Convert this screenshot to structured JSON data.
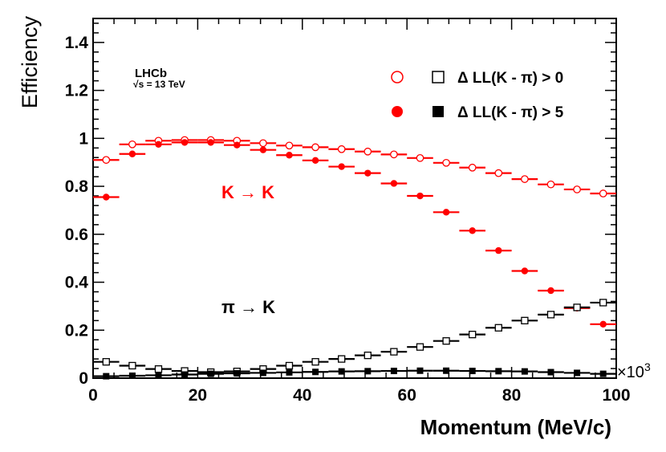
{
  "chart_data": {
    "type": "scatter",
    "xlabel": "Momentum (MeV/c)",
    "ylabel": "Efficiency",
    "x_multiplier": "×10",
    "x_multiplier_exp": "3",
    "xlim": [
      0,
      100
    ],
    "ylim": [
      0,
      1.5
    ],
    "x_ticks": [
      "0",
      "20",
      "40",
      "60",
      "80",
      "100"
    ],
    "y_ticks": [
      "0",
      "0.2",
      "0.4",
      "0.6",
      "0.8",
      "1",
      "1.2",
      "1.4"
    ],
    "experiment_label": "LHCb",
    "energy_label": "√s = 13 TeV",
    "annotations": [
      {
        "text": "K → K",
        "color": "#ff0000"
      },
      {
        "text": "π → K",
        "color": "#000000"
      }
    ],
    "legend": [
      {
        "label": "Δ LL(K - π) > 0",
        "markers": [
          "open-circle",
          "open-square"
        ]
      },
      {
        "label": "Δ LL(K - π) > 5",
        "markers": [
          "filled-circle",
          "filled-square"
        ]
      }
    ],
    "bin_centers": [
      2.5,
      7.5,
      12.5,
      17.5,
      22.5,
      27.5,
      32.5,
      37.5,
      42.5,
      47.5,
      52.5,
      57.5,
      62.5,
      67.5,
      72.5,
      77.5,
      82.5,
      87.5,
      92.5,
      97.5
    ],
    "bin_half_width": 2.5,
    "series": [
      {
        "name": "K→K, ΔLL(K-π) > 0",
        "marker": "open-circle",
        "color": "#ff0000",
        "values": [
          0.91,
          0.975,
          0.99,
          0.993,
          0.993,
          0.99,
          0.98,
          0.97,
          0.963,
          0.955,
          0.945,
          0.933,
          0.918,
          0.898,
          0.878,
          0.855,
          0.83,
          0.808,
          0.787,
          0.77
        ]
      },
      {
        "name": "K→K, ΔLL(K-π) > 5",
        "marker": "filled-circle",
        "color": "#ff0000",
        "values": [
          0.755,
          0.935,
          0.975,
          0.983,
          0.983,
          0.972,
          0.952,
          0.93,
          0.908,
          0.882,
          0.855,
          0.812,
          0.76,
          0.692,
          0.615,
          0.532,
          0.447,
          0.365,
          0.292,
          0.225
        ]
      },
      {
        "name": "π→K, ΔLL(K-π) > 0",
        "marker": "open-square",
        "color": "#000000",
        "values": [
          0.068,
          0.052,
          0.038,
          0.03,
          0.025,
          0.028,
          0.038,
          0.052,
          0.068,
          0.08,
          0.095,
          0.11,
          0.13,
          0.155,
          0.182,
          0.21,
          0.24,
          0.265,
          0.295,
          0.315
        ]
      },
      {
        "name": "π→K, ΔLL(K-π) > 5",
        "marker": "filled-square",
        "color": "#000000",
        "values": [
          0.008,
          0.01,
          0.012,
          0.015,
          0.018,
          0.02,
          0.022,
          0.024,
          0.026,
          0.028,
          0.029,
          0.03,
          0.031,
          0.031,
          0.03,
          0.029,
          0.028,
          0.025,
          0.022,
          0.018
        ]
      }
    ]
  }
}
